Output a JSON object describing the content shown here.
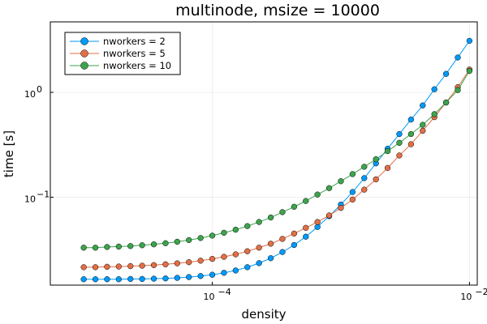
{
  "chart_data": {
    "type": "line",
    "title": "multinode, msize = 10000",
    "xlabel": "density",
    "ylabel": "time [s]",
    "xscale": "log",
    "yscale": "log",
    "xlim": [
      5.5e-06,
      0.0115
    ],
    "ylim": [
      0.0145,
      4.7
    ],
    "grid": true,
    "legend_position": "top-left",
    "x_ticks": [
      {
        "value": 0.0001,
        "base": "10",
        "exp": "−4"
      },
      {
        "value": 0.01,
        "base": "10",
        "exp": "−2"
      }
    ],
    "y_ticks": [
      {
        "value": 0.1,
        "base": "10",
        "exp": "−1"
      },
      {
        "value": 1,
        "base": "10",
        "exp": "0"
      }
    ],
    "series": [
      {
        "name": "nworkers = 2",
        "color": "#009af9",
        "x": [
          1e-05,
          1.233e-05,
          1.52e-05,
          1.874e-05,
          2.31e-05,
          2.848e-05,
          3.511e-05,
          4.329e-05,
          5.337e-05,
          6.579e-05,
          8.111e-05,
          0.0001,
          0.0001233,
          0.000152,
          0.0001874,
          0.000231,
          0.0002848,
          0.0003511,
          0.0004329,
          0.0005337,
          0.0006579,
          0.0008111,
          0.001,
          0.001233,
          0.00152,
          0.001874,
          0.00231,
          0.002848,
          0.003511,
          0.004329,
          0.005337,
          0.006579,
          0.008111,
          0.01
        ],
        "y": [
          0.0165,
          0.0165,
          0.0165,
          0.0165,
          0.0166,
          0.0166,
          0.0167,
          0.0168,
          0.017,
          0.0173,
          0.0177,
          0.0182,
          0.019,
          0.02,
          0.0215,
          0.0235,
          0.0262,
          0.03,
          0.035,
          0.042,
          0.052,
          0.066,
          0.085,
          0.112,
          0.152,
          0.21,
          0.29,
          0.4,
          0.55,
          0.75,
          1.07,
          1.5,
          2.15,
          3.1
        ]
      },
      {
        "name": "nworkers = 5",
        "color": "#e26f46",
        "x": [
          1e-05,
          1.233e-05,
          1.52e-05,
          1.874e-05,
          2.31e-05,
          2.848e-05,
          3.511e-05,
          4.329e-05,
          5.337e-05,
          6.579e-05,
          8.111e-05,
          0.0001,
          0.0001233,
          0.000152,
          0.0001874,
          0.000231,
          0.0002848,
          0.0003511,
          0.0004329,
          0.0005337,
          0.0006579,
          0.0008111,
          0.001,
          0.001233,
          0.00152,
          0.001874,
          0.00231,
          0.002848,
          0.003511,
          0.004329,
          0.005337,
          0.006579,
          0.008111,
          0.01
        ],
        "y": [
          0.0215,
          0.0215,
          0.0217,
          0.0218,
          0.022,
          0.0222,
          0.0225,
          0.0229,
          0.0234,
          0.024,
          0.0248,
          0.0258,
          0.027,
          0.0285,
          0.0305,
          0.033,
          0.036,
          0.04,
          0.045,
          0.051,
          0.058,
          0.067,
          0.079,
          0.095,
          0.118,
          0.148,
          0.19,
          0.25,
          0.32,
          0.43,
          0.58,
          0.8,
          1.12,
          1.65
        ]
      },
      {
        "name": "nworkers = 10",
        "color": "#3da44d",
        "x": [
          1e-05,
          1.233e-05,
          1.52e-05,
          1.874e-05,
          2.31e-05,
          2.848e-05,
          3.511e-05,
          4.329e-05,
          5.337e-05,
          6.579e-05,
          8.111e-05,
          0.0001,
          0.0001233,
          0.000152,
          0.0001874,
          0.000231,
          0.0002848,
          0.0003511,
          0.0004329,
          0.0005337,
          0.0006579,
          0.0008111,
          0.001,
          0.001233,
          0.00152,
          0.001874,
          0.00231,
          0.002848,
          0.003511,
          0.004329,
          0.005337,
          0.006579,
          0.008111,
          0.01
        ],
        "y": [
          0.033,
          0.033,
          0.0335,
          0.0338,
          0.0342,
          0.0348,
          0.0355,
          0.0364,
          0.0376,
          0.039,
          0.0408,
          0.043,
          0.0458,
          0.049,
          0.053,
          0.058,
          0.064,
          0.072,
          0.081,
          0.092,
          0.106,
          0.122,
          0.142,
          0.166,
          0.195,
          0.23,
          0.275,
          0.33,
          0.4,
          0.49,
          0.62,
          0.8,
          1.05,
          1.6
        ]
      }
    ]
  }
}
